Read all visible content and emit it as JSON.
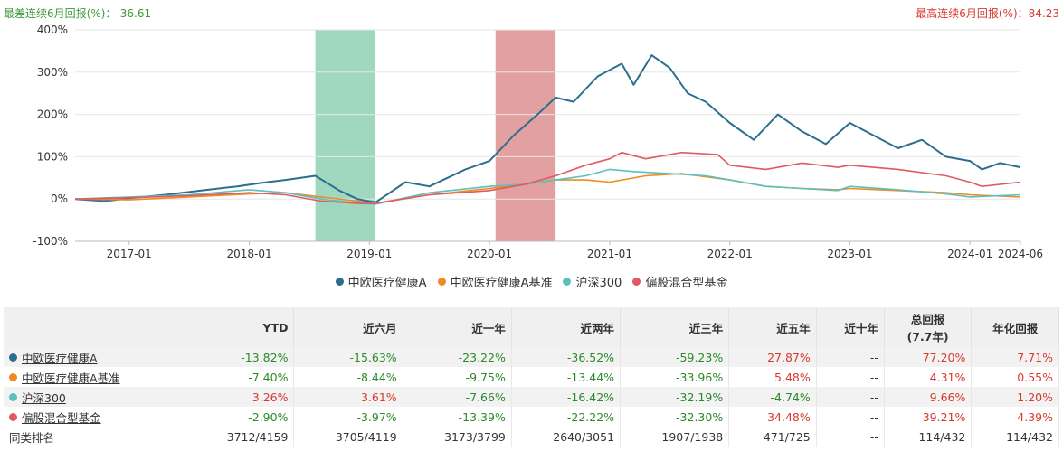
{
  "header": {
    "worst_label": "最差连续6月回报(%)：-36.61",
    "best_label": "最高连续6月回报(%)：84.23"
  },
  "chart_data": {
    "type": "line",
    "ylim": [
      -100,
      400
    ],
    "y_ticks": [
      "400%",
      "300%",
      "200%",
      "100%",
      "0%",
      "-100%"
    ],
    "y_tick_values": [
      400,
      300,
      200,
      100,
      0,
      -100
    ],
    "x_range": [
      2016.55,
      2024.42
    ],
    "x_ticks": [
      {
        "label": "2017-01",
        "x": 2017.0
      },
      {
        "label": "2018-01",
        "x": 2018.0
      },
      {
        "label": "2019-01",
        "x": 2019.0
      },
      {
        "label": "2020-01",
        "x": 2020.0
      },
      {
        "label": "2021-01",
        "x": 2021.0
      },
      {
        "label": "2022-01",
        "x": 2022.0
      },
      {
        "label": "2023-01",
        "x": 2023.0
      },
      {
        "label": "2024-01",
        "x": 2024.0
      },
      {
        "label": "2024-06",
        "x": 2024.42
      }
    ],
    "shaded_periods": [
      {
        "start": 2018.55,
        "end": 2019.05,
        "color": "#9fd8bf"
      },
      {
        "start": 2020.05,
        "end": 2020.55,
        "color": "#e3a0a0"
      }
    ],
    "series": [
      {
        "name": "中欧医疗健康A",
        "color": "#2b6f8f",
        "x": [
          2016.55,
          2016.8,
          2017.0,
          2017.3,
          2017.6,
          2017.9,
          2018.1,
          2018.3,
          2018.55,
          2018.75,
          2018.9,
          2019.05,
          2019.3,
          2019.5,
          2019.8,
          2020.0,
          2020.2,
          2020.4,
          2020.55,
          2020.7,
          2020.9,
          2021.1,
          2021.2,
          2021.35,
          2021.5,
          2021.65,
          2021.8,
          2022.0,
          2022.2,
          2022.4,
          2022.6,
          2022.8,
          2023.0,
          2023.2,
          2023.4,
          2023.6,
          2023.8,
          2024.0,
          2024.1,
          2024.25,
          2024.42
        ],
        "y": [
          0,
          -5,
          2,
          10,
          20,
          30,
          38,
          45,
          55,
          20,
          0,
          -8,
          40,
          30,
          70,
          90,
          150,
          200,
          240,
          230,
          290,
          320,
          270,
          340,
          310,
          250,
          230,
          180,
          140,
          200,
          160,
          130,
          180,
          150,
          120,
          140,
          100,
          90,
          70,
          85,
          75
        ]
      },
      {
        "name": "中欧医疗健康A基准",
        "color": "#f08a24",
        "x": [
          2016.55,
          2017.0,
          2017.5,
          2018.0,
          2018.3,
          2018.6,
          2018.9,
          2019.05,
          2019.5,
          2020.0,
          2020.3,
          2020.55,
          2020.8,
          2021.0,
          2021.3,
          2021.6,
          2022.0,
          2022.3,
          2022.6,
          2022.9,
          2023.0,
          2023.4,
          2023.8,
          2024.0,
          2024.42
        ],
        "y": [
          0,
          -2,
          5,
          12,
          15,
          5,
          -5,
          -10,
          10,
          25,
          35,
          45,
          45,
          40,
          55,
          60,
          45,
          30,
          25,
          22,
          25,
          20,
          15,
          10,
          5
        ]
      },
      {
        "name": "沪深300",
        "color": "#5bc0be",
        "x": [
          2016.55,
          2017.0,
          2017.5,
          2018.0,
          2018.3,
          2018.6,
          2018.9,
          2019.05,
          2019.5,
          2020.0,
          2020.3,
          2020.55,
          2020.8,
          2021.0,
          2021.2,
          2021.5,
          2021.8,
          2022.0,
          2022.3,
          2022.6,
          2022.9,
          2023.0,
          2023.4,
          2023.8,
          2024.0,
          2024.42
        ],
        "y": [
          0,
          5,
          10,
          22,
          15,
          0,
          -10,
          -12,
          15,
          30,
          35,
          45,
          55,
          70,
          65,
          60,
          55,
          45,
          30,
          25,
          20,
          30,
          22,
          12,
          5,
          10
        ]
      },
      {
        "name": "偏股混合型基金",
        "color": "#e05a5f",
        "x": [
          2016.55,
          2017.0,
          2017.5,
          2018.0,
          2018.3,
          2018.6,
          2018.9,
          2019.05,
          2019.5,
          2020.0,
          2020.3,
          2020.55,
          2020.8,
          2021.0,
          2021.1,
          2021.3,
          2021.6,
          2021.9,
          2022.0,
          2022.3,
          2022.6,
          2022.9,
          2023.0,
          2023.4,
          2023.8,
          2024.0,
          2024.1,
          2024.42
        ],
        "y": [
          0,
          3,
          8,
          15,
          10,
          -5,
          -10,
          -10,
          10,
          20,
          35,
          55,
          80,
          95,
          110,
          95,
          110,
          105,
          80,
          70,
          85,
          75,
          80,
          70,
          55,
          40,
          30,
          40
        ]
      }
    ]
  },
  "table": {
    "headers": [
      "",
      "YTD",
      "近六月",
      "近一年",
      "近两年",
      "近三年",
      "近五年",
      "近十年",
      "总回报\n(7.7年)",
      "年化回报"
    ],
    "rows": [
      {
        "name": "中欧医疗健康A",
        "color": "#2b6f8f",
        "values": [
          "-13.82%",
          "-15.63%",
          "-23.22%",
          "-36.52%",
          "-59.23%",
          "27.87%",
          "--",
          "77.20%",
          "7.71%"
        ]
      },
      {
        "name": "中欧医疗健康A基准",
        "color": "#f08a24",
        "values": [
          "-7.40%",
          "-8.44%",
          "-9.75%",
          "-13.44%",
          "-33.96%",
          "5.48%",
          "--",
          "4.31%",
          "0.55%"
        ]
      },
      {
        "name": "沪深300",
        "color": "#5bc0be",
        "values": [
          "3.26%",
          "3.61%",
          "-7.66%",
          "-16.42%",
          "-32.19%",
          "-4.74%",
          "--",
          "9.66%",
          "1.20%"
        ]
      },
      {
        "name": "偏股混合型基金",
        "color": "#e05a5f",
        "values": [
          "-2.90%",
          "-3.97%",
          "-13.39%",
          "-22.22%",
          "-32.30%",
          "34.48%",
          "--",
          "39.21%",
          "4.39%"
        ]
      }
    ],
    "rank_row": {
      "name": "同类排名",
      "values": [
        "3712/4159",
        "3705/4119",
        "3173/3799",
        "2640/3051",
        "1907/1938",
        "471/725",
        "--",
        "114/432",
        "114/432"
      ]
    }
  }
}
